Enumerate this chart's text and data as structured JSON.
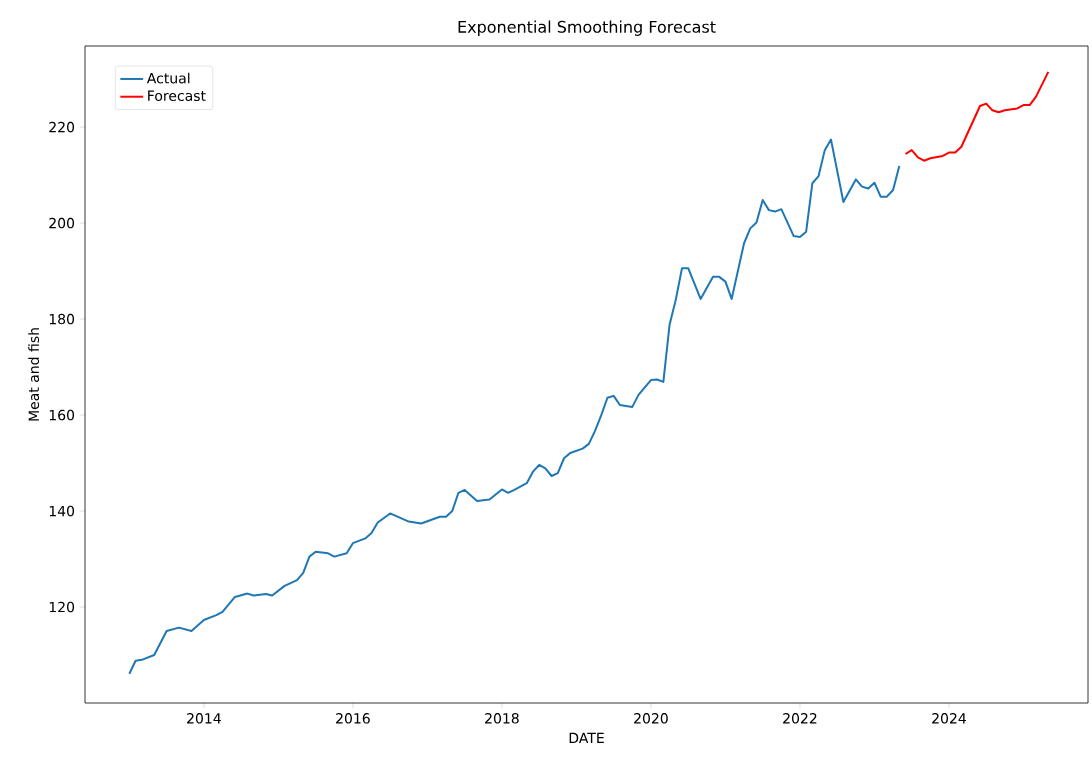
{
  "chart_data": {
    "type": "line",
    "title": "Exponential Smoothing Forecast",
    "xlabel": "DATE",
    "ylabel": "Meat and fish",
    "xlim": [
      "2012-05-27",
      "2025-11-13"
    ],
    "ylim": [
      100,
      236.9
    ],
    "xticks": [
      "2014",
      "2016",
      "2018",
      "2020",
      "2022",
      "2024"
    ],
    "yticks": [
      120,
      140,
      160,
      180,
      200,
      220
    ],
    "legend": "top left",
    "series": [
      {
        "name": "Actual",
        "color": "#1f77b4",
        "x": [
          "2013-01",
          "2013-02",
          "2013-03",
          "2013-05",
          "2013-07",
          "2013-09",
          "2013-11",
          "2014-01",
          "2014-03",
          "2014-04",
          "2014-06",
          "2014-08",
          "2014-09",
          "2014-11",
          "2014-12",
          "2015-02",
          "2015-04",
          "2015-05",
          "2015-06",
          "2015-07",
          "2015-09",
          "2015-10",
          "2015-12",
          "2016-01",
          "2016-03",
          "2016-04",
          "2016-05",
          "2016-07",
          "2016-10",
          "2016-12",
          "2017-03",
          "2017-04",
          "2017-05",
          "2017-06",
          "2017-07",
          "2017-09",
          "2017-11",
          "2018-01",
          "2018-02",
          "2018-03",
          "2018-05",
          "2018-06",
          "2018-07",
          "2018-08",
          "2018-09",
          "2018-10",
          "2018-11",
          "2018-12",
          "2019-02",
          "2019-03",
          "2019-04",
          "2019-05",
          "2019-06",
          "2019-07",
          "2019-08",
          "2019-10",
          "2019-11",
          "2020-01",
          "2020-02",
          "2020-03",
          "2020-04",
          "2020-05",
          "2020-06",
          "2020-07",
          "2020-09",
          "2020-11",
          "2020-12",
          "2021-01",
          "2021-02",
          "2021-04",
          "2021-05",
          "2021-06",
          "2021-07",
          "2021-08",
          "2021-09",
          "2021-10",
          "2021-12",
          "2022-01",
          "2022-02",
          "2022-03",
          "2022-04",
          "2022-05",
          "2022-06",
          "2022-08",
          "2022-10",
          "2022-11",
          "2022-12",
          "2023-01",
          "2023-02",
          "2023-03",
          "2023-04",
          "2023-05"
        ],
        "values": [
          106.1,
          108.8,
          109,
          110,
          115,
          115.7,
          115,
          117.3,
          118.3,
          119,
          122.1,
          122.8,
          122.4,
          122.7,
          122.4,
          124.4,
          125.6,
          127.1,
          130.5,
          131.5,
          131.2,
          130.5,
          131.2,
          133.3,
          134.3,
          135.4,
          137.6,
          139.5,
          137.8,
          137.4,
          138.8,
          138.8,
          140,
          143.8,
          144.4,
          142.1,
          142.4,
          144.5,
          143.8,
          144.4,
          145.8,
          148.2,
          149.6,
          148.9,
          147.3,
          147.9,
          151,
          152.1,
          153,
          154,
          156.7,
          160,
          163.6,
          164,
          162.1,
          161.7,
          164.2,
          167.3,
          167.4,
          166.9,
          178.8,
          184,
          190.6,
          190.6,
          184.2,
          188.8,
          188.8,
          187.8,
          184.2,
          195.8,
          198.9,
          200.1,
          204.8,
          202.7,
          202.4,
          202.9,
          197.3,
          197.1,
          198.2,
          208.3,
          209.8,
          215.2,
          217.4,
          204.4,
          209.1,
          207.6,
          207.2,
          208.4,
          205.5,
          205.5,
          206.9,
          211.9
        ]
      },
      {
        "name": "Forecast",
        "color": "#ff0000",
        "x": [
          "2023-06",
          "2023-07",
          "2023-08",
          "2023-09",
          "2023-10",
          "2023-12",
          "2024-01",
          "2024-02",
          "2024-03",
          "2024-06",
          "2024-07",
          "2024-08",
          "2024-09",
          "2024-10",
          "2024-12",
          "2025-01",
          "2025-02",
          "2025-03",
          "2025-05"
        ],
        "values": [
          214.4,
          215.2,
          213.7,
          213,
          213.5,
          214,
          214.7,
          214.7,
          215.9,
          224.4,
          224.9,
          223.5,
          223.1,
          223.5,
          223.9,
          224.6,
          224.6,
          226.3,
          231.5
        ]
      }
    ]
  }
}
